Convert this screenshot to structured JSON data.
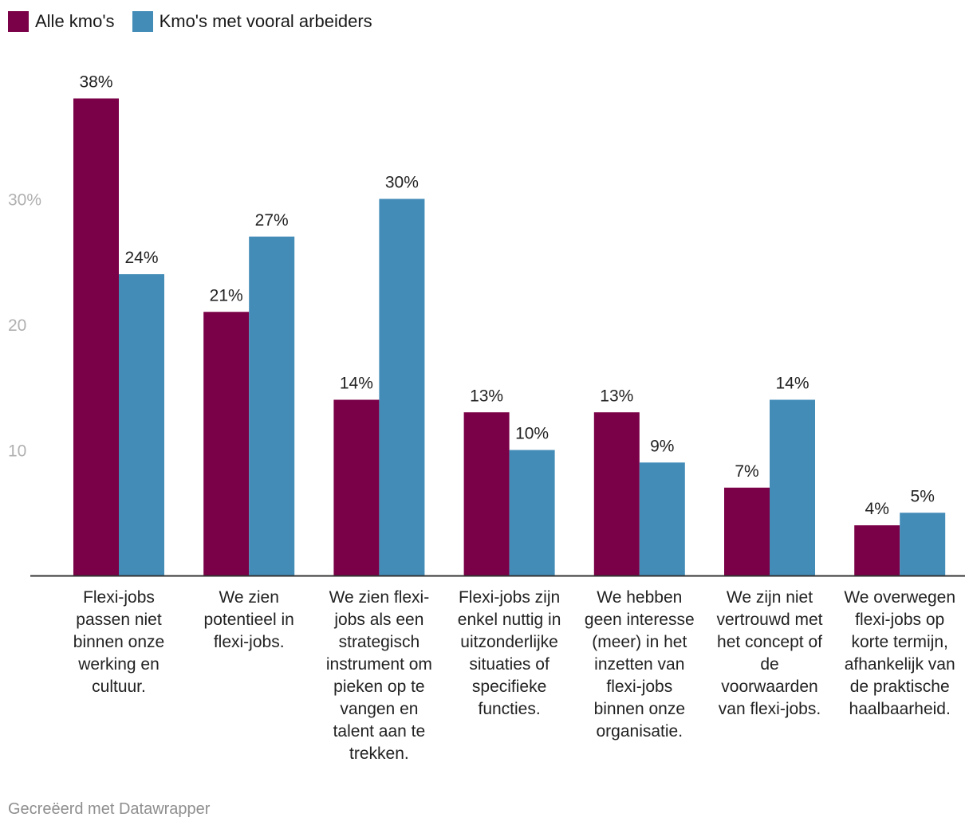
{
  "colors": {
    "series1": "#7a0047",
    "series2": "#438cb8",
    "axis": "#333333",
    "tick_text": "#b0b0b0"
  },
  "chart_data": {
    "type": "bar",
    "title": "",
    "xlabel": "",
    "ylabel": "",
    "ylim": [
      0,
      40
    ],
    "y_ticks": [
      {
        "value": 10,
        "label": "10"
      },
      {
        "value": 20,
        "label": "20"
      },
      {
        "value": 30,
        "label": "30%"
      }
    ],
    "legend_position": "top-left",
    "categories": [
      "Flexi-jobs passen niet binnen onze werking en cultuur.",
      "We zien potentieel in flexi-jobs.",
      "We zien flexi-jobs als een strategisch instrument om pieken op te vangen en talent aan te trekken.",
      "Flexi-jobs zijn enkel nuttig in uitzonderlijke situaties of specifieke functies.",
      "We hebben geen interesse (meer) in het inzetten van flexi-jobs binnen onze organisatie.",
      "We zijn niet vertrouwd met het concept of de voorwaarden van flexi-jobs.",
      "We overwegen flexi-jobs op korte termijn, afhankelijk van de praktische haalbaarheid."
    ],
    "series": [
      {
        "name": "Alle kmo's",
        "values": [
          38,
          21,
          14,
          13,
          13,
          7,
          4
        ],
        "labels": [
          "38%",
          "21%",
          "14%",
          "13%",
          "13%",
          "7%",
          "4%"
        ]
      },
      {
        "name": "Kmo's met vooral arbeiders",
        "values": [
          24,
          27,
          30,
          10,
          9,
          14,
          5
        ],
        "labels": [
          "24%",
          "27%",
          "30%",
          "10%",
          "9%",
          "14%",
          "5%"
        ]
      }
    ]
  },
  "footer": {
    "credit": "Gecreëerd met Datawrapper"
  }
}
